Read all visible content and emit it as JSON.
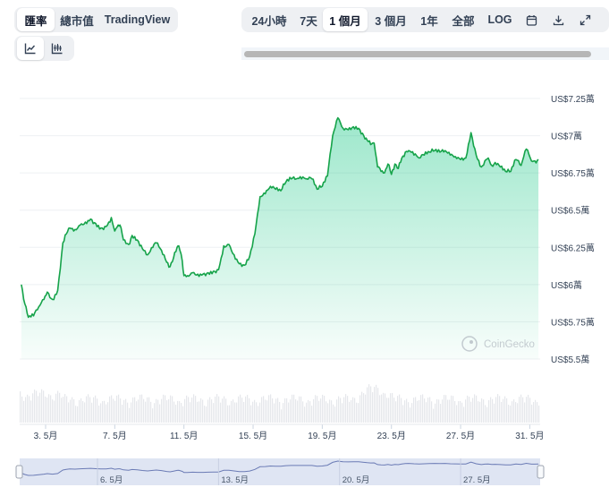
{
  "tabs": [
    {
      "label": "匯率",
      "active": true
    },
    {
      "label": "總市值",
      "active": false
    },
    {
      "label": "TradingView",
      "active": false
    }
  ],
  "chart_types": [
    {
      "icon": "line-chart-icon",
      "active": true
    },
    {
      "icon": "candlestick-chart-icon",
      "active": false
    }
  ],
  "ranges": [
    {
      "label": "24小時",
      "active": false
    },
    {
      "label": "7天",
      "active": false
    },
    {
      "label": "1 個月",
      "active": true
    },
    {
      "label": "3 個月",
      "active": false
    },
    {
      "label": "1年",
      "active": false
    },
    {
      "label": "全部",
      "active": false
    },
    {
      "label": "LOG",
      "active": false
    }
  ],
  "tool_icons": [
    "calendar-icon",
    "download-icon",
    "expand-icon"
  ],
  "watermark": "CoinGecko",
  "colors": {
    "line": "#16a34a",
    "fill_top": "#16c784",
    "volume": "#e5e7eb",
    "navigator_line": "#6b7bb5",
    "navigator_fill": "#dfe5f3"
  },
  "chart_data": {
    "type": "area",
    "title": "",
    "xlabel": "",
    "ylabel": "",
    "x_ticks": [
      "3. 5月",
      "7. 5月",
      "11. 5月",
      "15. 5月",
      "19. 5月",
      "23. 5月",
      "27. 5月",
      "31. 5月"
    ],
    "y_ticks": [
      "US$7.25萬",
      "US$7萬",
      "US$6.75萬",
      "US$6.5萬",
      "US$6.25萬",
      "US$6萬",
      "US$5.75萬",
      "US$5.5萬"
    ],
    "ylim": [
      55000,
      72500
    ],
    "xlim": [
      1.5,
      31.6
    ],
    "grid": true,
    "x_unit": "day of May",
    "y_unit": "USD",
    "series": [
      {
        "x": [
          1.6,
          1.8,
          2.0,
          2.3,
          2.6,
          2.9,
          3.1,
          3.4,
          3.7,
          4.0,
          4.2,
          4.4,
          4.7,
          5.0,
          5.3,
          5.6,
          5.9,
          6.2,
          6.5,
          6.8,
          7.0,
          7.2,
          7.3,
          7.5,
          7.8,
          8.0,
          8.3,
          8.6,
          8.9,
          9.2,
          9.4,
          9.7,
          10.0,
          10.2,
          10.4,
          10.6,
          10.7,
          10.9,
          11.0,
          11.2,
          11.5,
          11.8,
          12.1,
          12.4,
          12.7,
          13.0,
          13.3,
          13.6,
          13.9,
          14.2,
          14.5,
          14.8,
          15.1,
          15.4,
          15.7,
          16.0,
          16.3,
          16.6,
          16.9,
          17.2,
          17.5,
          17.8,
          18.1,
          18.4,
          18.7,
          19.0,
          19.3,
          19.6,
          19.9,
          20.2,
          20.5,
          20.8,
          21.1,
          21.4,
          21.6,
          21.8,
          22.0,
          22.2,
          22.4,
          22.6,
          22.8,
          23.0,
          23.2,
          23.4,
          23.6,
          23.8,
          24.0,
          24.3,
          24.6,
          24.9,
          25.2,
          25.5,
          25.8,
          26.1,
          26.4,
          26.7,
          27.0,
          27.3,
          27.6,
          27.9,
          28.2,
          28.4,
          28.6,
          28.8,
          29.0,
          29.3,
          29.6,
          29.9,
          30.2,
          30.5,
          30.8,
          31.1,
          31.3,
          31.5
        ],
        "y": [
          60000,
          58700,
          57800,
          57900,
          58500,
          59000,
          59500,
          59000,
          59600,
          62800,
          63400,
          63800,
          63700,
          64000,
          64200,
          64400,
          64100,
          63800,
          63900,
          64500,
          63600,
          64000,
          64000,
          63000,
          62700,
          63300,
          63000,
          62400,
          62000,
          62500,
          62800,
          62300,
          61500,
          61200,
          61800,
          62500,
          62600,
          61600,
          60600,
          60600,
          60800,
          60700,
          60700,
          60800,
          60900,
          61000,
          62600,
          62700,
          62000,
          61400,
          61300,
          61900,
          63400,
          65900,
          66100,
          66600,
          66400,
          66300,
          66900,
          67100,
          67100,
          67100,
          67100,
          67100,
          66400,
          66600,
          67300,
          70000,
          71200,
          70500,
          70400,
          70600,
          70500,
          70000,
          69700,
          69400,
          69500,
          67900,
          67600,
          67500,
          68100,
          67400,
          68100,
          67800,
          68500,
          68900,
          69000,
          68700,
          68500,
          68700,
          68900,
          69000,
          68900,
          69000,
          68700,
          68600,
          68400,
          68500,
          70200,
          68700,
          67900,
          68300,
          68500,
          68000,
          68200,
          67900,
          67600,
          67600,
          68400,
          68000,
          69100,
          68300,
          68300,
          68400
        ]
      }
    ]
  }
}
